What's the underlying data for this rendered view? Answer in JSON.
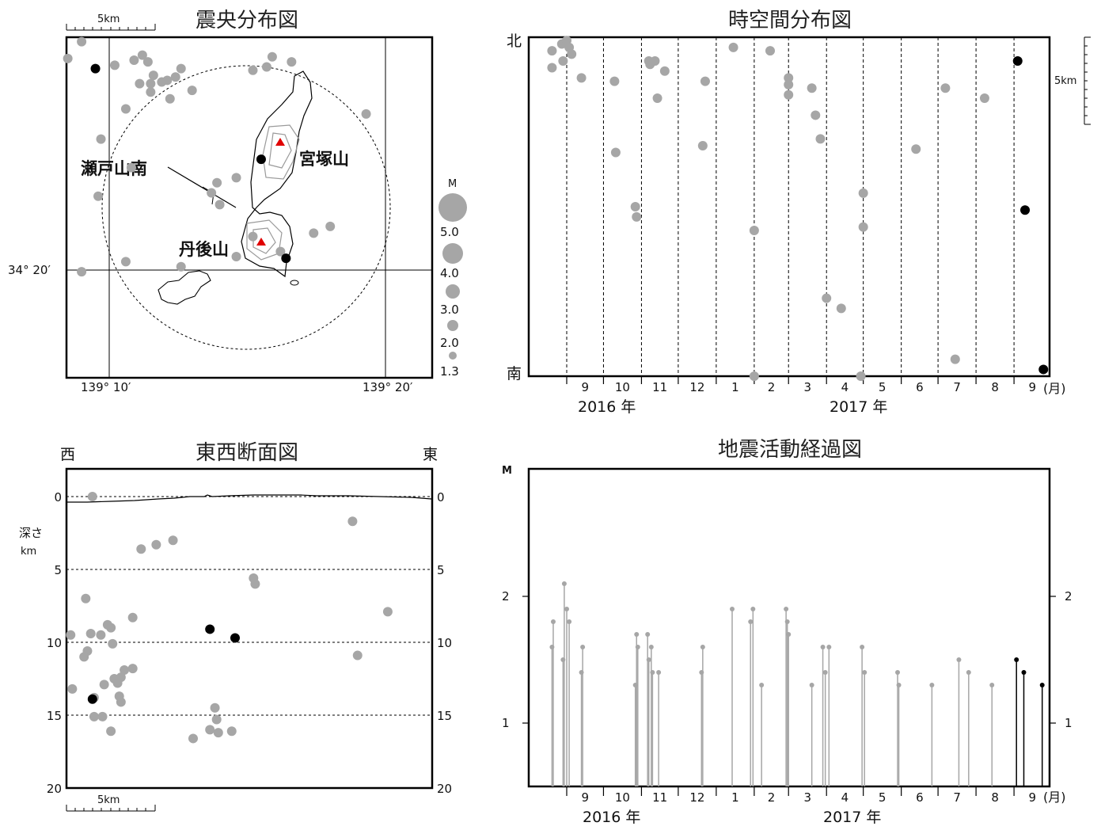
{
  "titles": {
    "epicenter": "震央分布図",
    "spacetime": "時空間分布図",
    "ew_section": "東西断面図",
    "activity": "地震活動経過図"
  },
  "epicenter_map": {
    "scale_label": "5km",
    "lat_label": "34° 20′",
    "lon_labels": [
      "139° 10′",
      "139° 20′"
    ],
    "place_labels": {
      "setoyama_minami": "瀬戸山南",
      "miyatsukayama": "宮塚山",
      "tangoyama": "丹後山"
    },
    "legend_title": "M",
    "legend_mags": [
      "5.0",
      "4.0",
      "3.0",
      "2.0",
      "1.3"
    ],
    "colors": {
      "old_events": "#a6a6a6",
      "recent_events": "#000000",
      "volcano_marker": "#e00000"
    }
  },
  "spacetime_plot": {
    "north_label": "北",
    "south_label": "南",
    "scale_label": "5km",
    "month_labels": [
      "9",
      "10",
      "11",
      "12",
      "1",
      "2",
      "3",
      "4",
      "5",
      "6",
      "7",
      "8",
      "9"
    ],
    "month_unit": "(月)",
    "year_labels": [
      "2016 年",
      "2017 年"
    ]
  },
  "section_plot": {
    "west_label": "西",
    "east_label": "東",
    "depth_label": [
      "深さ",
      "km"
    ],
    "depth_ticks": [
      "0",
      "5",
      "10",
      "15",
      "20"
    ],
    "scale_label": "5km"
  },
  "activity_plot": {
    "y_label": "M",
    "y_ticks": [
      "1",
      "2"
    ],
    "month_labels": [
      "9",
      "10",
      "11",
      "12",
      "1",
      "2",
      "3",
      "4",
      "5",
      "6",
      "7",
      "8",
      "9"
    ],
    "month_unit": "(月)",
    "year_labels": [
      "2016 年",
      "2017 年"
    ]
  },
  "chart_data": [
    {
      "type": "scatter",
      "title": "震央分布図",
      "description_units": "map points; x = longitude minutes offset, y = latitude minutes offset (approximate)",
      "points_gray": [
        [
          -1.5,
          12.6
        ],
        [
          -1.0,
          13.6
        ],
        [
          0.2,
          12.2
        ],
        [
          0.9,
          12.5
        ],
        [
          1.2,
          12.8
        ],
        [
          1.4,
          12.4
        ],
        [
          1.6,
          11.6
        ],
        [
          1.5,
          11.1
        ],
        [
          1.9,
          11.2
        ],
        [
          2.6,
          12.0
        ],
        [
          2.1,
          11.3
        ],
        [
          2.4,
          11.5
        ],
        [
          1.1,
          11.1
        ],
        [
          1.5,
          10.6
        ],
        [
          2.2,
          10.2
        ],
        [
          0.6,
          9.6
        ],
        [
          3.0,
          10.7
        ],
        [
          5.7,
          12.1
        ],
        [
          5.9,
          12.7
        ],
        [
          5.2,
          11.9
        ],
        [
          6.6,
          12.4
        ],
        [
          9.3,
          9.3
        ],
        [
          -0.3,
          7.8
        ],
        [
          0.8,
          6.1
        ],
        [
          4.6,
          5.5
        ],
        [
          3.7,
          4.6
        ],
        [
          3.9,
          5.2
        ],
        [
          -0.4,
          4.4
        ],
        [
          4.0,
          3.9
        ],
        [
          5.2,
          2.0
        ],
        [
          0.6,
          0.5
        ],
        [
          7.4,
          2.2
        ],
        [
          4.6,
          0.8
        ],
        [
          2.6,
          0.2
        ],
        [
          6.2,
          1.1
        ],
        [
          8.0,
          2.6
        ],
        [
          -1.0,
          -0.1
        ]
      ],
      "points_black": [
        [
          -0.5,
          12.0
        ],
        [
          5.5,
          6.6
        ],
        [
          6.4,
          0.7
        ]
      ]
    },
    {
      "type": "scatter",
      "title": "時空間分布図",
      "x_range": [
        "2016-08",
        "2017-09"
      ],
      "y_range": [
        "南",
        "北"
      ],
      "points_gray": [
        [
          "2016-08-20",
          0.91
        ],
        [
          "2016-08-20",
          0.96
        ],
        [
          "2016-08-28",
          0.98
        ],
        [
          "2016-08-29",
          0.93
        ],
        [
          "2016-09-01",
          0.99
        ],
        [
          "2016-09-03",
          0.97
        ],
        [
          "2016-09-05",
          0.95
        ],
        [
          "2016-09-13",
          0.88
        ],
        [
          "2016-10-10",
          0.87
        ],
        [
          "2016-10-11",
          0.66
        ],
        [
          "2016-10-27",
          0.5
        ],
        [
          "2016-10-28",
          0.47
        ],
        [
          "2016-11-07",
          0.93
        ],
        [
          "2016-11-08",
          0.92
        ],
        [
          "2016-11-12",
          0.93
        ],
        [
          "2016-11-14",
          0.82
        ],
        [
          "2016-11-20",
          0.9
        ],
        [
          "2016-12-21",
          0.68
        ],
        [
          "2016-12-23",
          0.87
        ],
        [
          "2017-01-15",
          0.97
        ],
        [
          "2017-02-01",
          0.43
        ],
        [
          "2017-02-01",
          0.0
        ],
        [
          "2017-02-14",
          0.96
        ],
        [
          "2017-03-01",
          0.88
        ],
        [
          "2017-03-01",
          0.86
        ],
        [
          "2017-03-01",
          0.83
        ],
        [
          "2017-03-20",
          0.85
        ],
        [
          "2017-03-23",
          0.77
        ],
        [
          "2017-03-27",
          0.7
        ],
        [
          "2017-04-01",
          0.23
        ],
        [
          "2017-04-13",
          0.2
        ],
        [
          "2017-04-29",
          0.0
        ],
        [
          "2017-05-01",
          0.54
        ],
        [
          "2017-05-01",
          0.44
        ],
        [
          "2017-06-13",
          0.67
        ],
        [
          "2017-07-07",
          0.85
        ],
        [
          "2017-07-15",
          0.05
        ],
        [
          "2017-08-08",
          0.82
        ]
      ],
      "points_black": [
        [
          "2017-09-04",
          0.93
        ],
        [
          "2017-09-10",
          0.49
        ],
        [
          "2017-09-25",
          0.02
        ]
      ]
    },
    {
      "type": "scatter",
      "title": "東西断面図",
      "xlabel": "",
      "ylabel": "深さ km",
      "ylim": [
        20,
        0
      ],
      "points_gray": [
        [
          -1.0,
          0.0
        ],
        [
          -2.3,
          9.5
        ],
        [
          -2.2,
          13.2
        ],
        [
          -1.4,
          7.0
        ],
        [
          -1.3,
          10.6
        ],
        [
          -1.1,
          9.4
        ],
        [
          -1.5,
          11.0
        ],
        [
          -0.9,
          13.8
        ],
        [
          -0.9,
          15.1
        ],
        [
          -0.5,
          9.5
        ],
        [
          -0.3,
          12.9
        ],
        [
          -0.4,
          15.1
        ],
        [
          -0.1,
          8.8
        ],
        [
          0.1,
          9.0
        ],
        [
          0.2,
          10.1
        ],
        [
          0.3,
          12.5
        ],
        [
          0.1,
          16.1
        ],
        [
          0.5,
          12.8
        ],
        [
          0.6,
          13.7
        ],
        [
          0.7,
          12.4
        ],
        [
          0.9,
          11.9
        ],
        [
          0.7,
          14.1
        ],
        [
          1.4,
          8.3
        ],
        [
          1.4,
          11.8
        ],
        [
          1.9,
          3.6
        ],
        [
          2.8,
          3.3
        ],
        [
          3.8,
          3.0
        ],
        [
          5.0,
          16.6
        ],
        [
          6.3,
          14.5
        ],
        [
          6.4,
          15.3
        ],
        [
          6.0,
          16.0
        ],
        [
          6.5,
          16.2
        ],
        [
          7.3,
          16.1
        ],
        [
          8.6,
          5.6
        ],
        [
          8.7,
          6.0
        ],
        [
          14.5,
          1.7
        ],
        [
          14.8,
          10.9
        ],
        [
          16.6,
          7.9
        ]
      ],
      "points_black": [
        [
          -1.0,
          13.9
        ],
        [
          6.0,
          9.1
        ],
        [
          7.5,
          9.7
        ]
      ]
    },
    {
      "type": "bar",
      "title": "地震活動経過図",
      "ylabel": "M",
      "ylim": [
        0.5,
        2.5
      ],
      "events_gray": [
        [
          "2016-08-20",
          1.6
        ],
        [
          "2016-08-21",
          1.8
        ],
        [
          "2016-08-29",
          1.5
        ],
        [
          "2016-08-30",
          2.1
        ],
        [
          "2016-09-01",
          1.9
        ],
        [
          "2016-09-03",
          1.8
        ],
        [
          "2016-09-13",
          1.4
        ],
        [
          "2016-09-14",
          1.6
        ],
        [
          "2016-10-27",
          1.3
        ],
        [
          "2016-10-28",
          1.7
        ],
        [
          "2016-10-29",
          1.6
        ],
        [
          "2016-11-06",
          1.7
        ],
        [
          "2016-11-07",
          1.5
        ],
        [
          "2016-11-09",
          1.6
        ],
        [
          "2016-11-10",
          1.4
        ],
        [
          "2016-11-15",
          1.4
        ],
        [
          "2016-12-20",
          1.4
        ],
        [
          "2016-12-21",
          1.6
        ],
        [
          "2017-01-14",
          1.9
        ],
        [
          "2017-01-29",
          1.8
        ],
        [
          "2017-01-31",
          1.9
        ],
        [
          "2017-02-07",
          1.3
        ],
        [
          "2017-02-27",
          1.9
        ],
        [
          "2017-02-28",
          1.8
        ],
        [
          "2017-03-01",
          1.7
        ],
        [
          "2017-03-20",
          1.3
        ],
        [
          "2017-03-29",
          1.6
        ],
        [
          "2017-03-31",
          1.4
        ],
        [
          "2017-04-03",
          1.6
        ],
        [
          "2017-04-30",
          1.6
        ],
        [
          "2017-05-02",
          1.4
        ],
        [
          "2017-05-29",
          1.4
        ],
        [
          "2017-05-30",
          1.3
        ],
        [
          "2017-06-26",
          1.3
        ],
        [
          "2017-07-18",
          1.5
        ],
        [
          "2017-07-26",
          1.4
        ],
        [
          "2017-08-14",
          1.3
        ]
      ],
      "events_black": [
        [
          "2017-09-03",
          1.5
        ],
        [
          "2017-09-09",
          1.4
        ],
        [
          "2017-09-24",
          1.3
        ]
      ]
    }
  ]
}
